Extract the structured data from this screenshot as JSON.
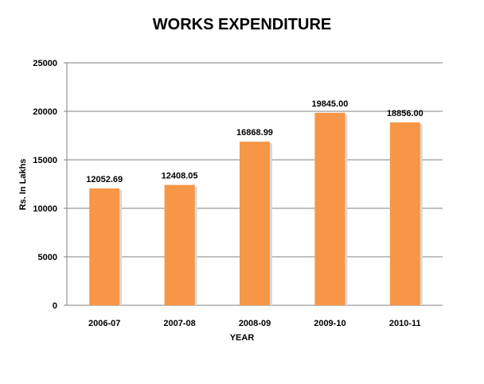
{
  "chart_data": {
    "type": "bar",
    "title": "WORKS EXPENDITURE",
    "xlabel": "YEAR",
    "ylabel": "Rs. In Lakhs",
    "categories": [
      "2006-07",
      "2007-08",
      "2008-09",
      "2009-10",
      "2010-11"
    ],
    "values": [
      12052.69,
      12408.05,
      16868.99,
      19845.0,
      18856.0
    ],
    "value_labels": [
      "12052.69",
      "12408.05",
      "16868.99",
      "19845.00",
      "18856.00"
    ],
    "ylim": [
      0,
      25000
    ],
    "yticks": [
      "0",
      "5000",
      "10000",
      "15000",
      "20000",
      "25000"
    ],
    "grid": true,
    "legend": "none",
    "colors": {
      "bar": "#F79646",
      "bar_shadow": "#D9D9D9",
      "grid": "#808080",
      "axis": "#808080",
      "text": "#000000"
    }
  }
}
